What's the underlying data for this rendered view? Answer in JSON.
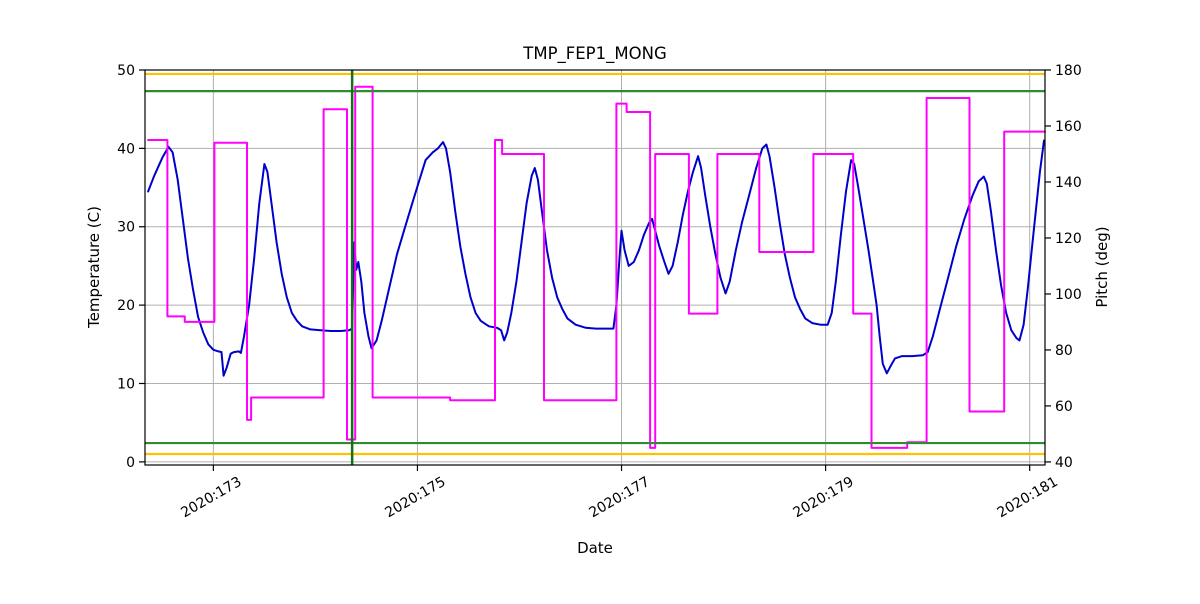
{
  "chart_data": {
    "type": "line",
    "title": "TMP_FEP1_MONG",
    "xlabel": "Date",
    "ylabel_left": "Temperature (C)",
    "ylabel_right": "Pitch (deg)",
    "grid": true,
    "grid_color": "#b0b0b0",
    "background": "#ffffff",
    "x_axis": {
      "min": 172.33,
      "max": 181.15,
      "ticks": [
        {
          "value": 173,
          "label": "2020:173"
        },
        {
          "value": 175,
          "label": "2020:175"
        },
        {
          "value": 177,
          "label": "2020:177"
        },
        {
          "value": 179,
          "label": "2020:179"
        },
        {
          "value": 181,
          "label": "2020:181"
        }
      ]
    },
    "left_axis": {
      "min": -0.4,
      "max": 50,
      "ticks": [
        0,
        10,
        20,
        30,
        40,
        50
      ],
      "color": "#000000"
    },
    "right_axis": {
      "min": 38.9,
      "max": 180,
      "ticks": [
        40,
        60,
        80,
        100,
        120,
        140,
        160,
        180
      ],
      "color": "#ff00ff"
    },
    "series": [
      {
        "name": "temperature",
        "axis": "left",
        "color": "#0000cd",
        "width": 2,
        "points": [
          [
            172.36,
            34.5
          ],
          [
            172.42,
            36.5
          ],
          [
            172.5,
            38.8
          ],
          [
            172.56,
            40.2
          ],
          [
            172.6,
            39.5
          ],
          [
            172.65,
            36
          ],
          [
            172.7,
            31
          ],
          [
            172.75,
            26
          ],
          [
            172.8,
            22
          ],
          [
            172.85,
            18.5
          ],
          [
            172.9,
            16.5
          ],
          [
            172.95,
            15
          ],
          [
            173.0,
            14.3
          ],
          [
            173.05,
            14.1
          ],
          [
            173.08,
            14
          ],
          [
            173.1,
            11
          ],
          [
            173.13,
            12
          ],
          [
            173.17,
            13.8
          ],
          [
            173.2,
            14
          ],
          [
            173.25,
            14.1
          ],
          [
            173.27,
            13.9
          ],
          [
            173.3,
            16
          ],
          [
            173.35,
            20
          ],
          [
            173.4,
            26
          ],
          [
            173.45,
            33
          ],
          [
            173.5,
            38
          ],
          [
            173.53,
            37
          ],
          [
            173.57,
            33
          ],
          [
            173.62,
            28
          ],
          [
            173.67,
            24
          ],
          [
            173.72,
            21
          ],
          [
            173.77,
            19
          ],
          [
            173.82,
            18
          ],
          [
            173.87,
            17.3
          ],
          [
            173.95,
            16.9
          ],
          [
            174.05,
            16.8
          ],
          [
            174.15,
            16.7
          ],
          [
            174.25,
            16.7
          ],
          [
            174.33,
            16.8
          ],
          [
            174.36,
            17
          ],
          [
            174.38,
            28
          ],
          [
            174.4,
            24.5
          ],
          [
            174.42,
            25.5
          ],
          [
            174.45,
            23
          ],
          [
            174.48,
            19
          ],
          [
            174.52,
            16
          ],
          [
            174.55,
            14.5
          ],
          [
            174.6,
            15.5
          ],
          [
            174.65,
            18
          ],
          [
            174.72,
            22
          ],
          [
            174.8,
            26.5
          ],
          [
            174.88,
            30
          ],
          [
            174.95,
            33
          ],
          [
            175.02,
            36
          ],
          [
            175.08,
            38.5
          ],
          [
            175.15,
            39.5
          ],
          [
            175.2,
            40
          ],
          [
            175.25,
            40.8
          ],
          [
            175.28,
            40
          ],
          [
            175.32,
            37
          ],
          [
            175.37,
            32
          ],
          [
            175.42,
            27.5
          ],
          [
            175.47,
            24
          ],
          [
            175.52,
            21
          ],
          [
            175.57,
            19
          ],
          [
            175.62,
            18
          ],
          [
            175.7,
            17.3
          ],
          [
            175.78,
            17.1
          ],
          [
            175.82,
            16.8
          ],
          [
            175.85,
            15.5
          ],
          [
            175.88,
            16.5
          ],
          [
            175.92,
            19
          ],
          [
            175.97,
            23
          ],
          [
            176.02,
            28
          ],
          [
            176.07,
            33
          ],
          [
            176.12,
            36.5
          ],
          [
            176.15,
            37.5
          ],
          [
            176.18,
            36
          ],
          [
            176.22,
            32
          ],
          [
            176.27,
            27
          ],
          [
            176.32,
            23.5
          ],
          [
            176.37,
            21
          ],
          [
            176.42,
            19.5
          ],
          [
            176.47,
            18.3
          ],
          [
            176.55,
            17.5
          ],
          [
            176.65,
            17.1
          ],
          [
            176.75,
            17
          ],
          [
            176.85,
            17
          ],
          [
            176.92,
            17
          ],
          [
            176.95,
            20
          ],
          [
            176.98,
            26
          ],
          [
            177.0,
            29.5
          ],
          [
            177.03,
            27
          ],
          [
            177.07,
            25
          ],
          [
            177.12,
            25.5
          ],
          [
            177.17,
            27
          ],
          [
            177.22,
            29
          ],
          [
            177.27,
            30.5
          ],
          [
            177.3,
            31
          ],
          [
            177.33,
            29.5
          ],
          [
            177.37,
            27.5
          ],
          [
            177.42,
            25.5
          ],
          [
            177.46,
            24
          ],
          [
            177.5,
            25
          ],
          [
            177.55,
            28
          ],
          [
            177.6,
            31.5
          ],
          [
            177.65,
            34.5
          ],
          [
            177.7,
            37
          ],
          [
            177.75,
            39
          ],
          [
            177.78,
            37.5
          ],
          [
            177.82,
            34
          ],
          [
            177.87,
            30
          ],
          [
            177.92,
            26.5
          ],
          [
            177.97,
            23.5
          ],
          [
            178.02,
            21.5
          ],
          [
            178.06,
            23
          ],
          [
            178.12,
            27
          ],
          [
            178.18,
            30.5
          ],
          [
            178.25,
            34
          ],
          [
            178.32,
            37.5
          ],
          [
            178.38,
            40
          ],
          [
            178.42,
            40.5
          ],
          [
            178.45,
            39
          ],
          [
            178.5,
            35
          ],
          [
            178.55,
            30.5
          ],
          [
            178.6,
            26.5
          ],
          [
            178.65,
            23.5
          ],
          [
            178.7,
            21
          ],
          [
            178.75,
            19.5
          ],
          [
            178.8,
            18.3
          ],
          [
            178.87,
            17.7
          ],
          [
            178.95,
            17.5
          ],
          [
            179.02,
            17.5
          ],
          [
            179.06,
            19
          ],
          [
            179.1,
            23
          ],
          [
            179.15,
            29
          ],
          [
            179.2,
            34.5
          ],
          [
            179.25,
            38.5
          ],
          [
            179.28,
            38
          ],
          [
            179.32,
            35
          ],
          [
            179.37,
            31
          ],
          [
            179.42,
            27
          ],
          [
            179.46,
            23.5
          ],
          [
            179.5,
            20
          ],
          [
            179.53,
            16
          ],
          [
            179.56,
            12.5
          ],
          [
            179.6,
            11.3
          ],
          [
            179.64,
            12.3
          ],
          [
            179.68,
            13.2
          ],
          [
            179.75,
            13.5
          ],
          [
            179.85,
            13.5
          ],
          [
            179.95,
            13.6
          ],
          [
            180.0,
            14
          ],
          [
            180.05,
            16
          ],
          [
            180.12,
            19.5
          ],
          [
            180.2,
            23.5
          ],
          [
            180.28,
            27.5
          ],
          [
            180.36,
            31
          ],
          [
            180.44,
            34
          ],
          [
            180.5,
            35.8
          ],
          [
            180.55,
            36.4
          ],
          [
            180.58,
            35.5
          ],
          [
            180.62,
            32
          ],
          [
            180.67,
            27
          ],
          [
            180.72,
            22.5
          ],
          [
            180.77,
            19
          ],
          [
            180.82,
            16.8
          ],
          [
            180.87,
            15.8
          ],
          [
            180.9,
            15.5
          ],
          [
            180.94,
            17.5
          ],
          [
            180.98,
            22
          ],
          [
            181.02,
            27
          ],
          [
            181.06,
            32
          ],
          [
            181.1,
            37
          ],
          [
            181.14,
            41
          ]
        ]
      },
      {
        "name": "pitch",
        "axis": "right",
        "color": "#ff00ff",
        "width": 2,
        "points": [
          [
            172.36,
            155
          ],
          [
            172.55,
            155
          ],
          [
            172.55,
            92
          ],
          [
            172.72,
            92
          ],
          [
            172.72,
            90
          ],
          [
            173.01,
            90
          ],
          [
            173.01,
            154
          ],
          [
            173.33,
            154
          ],
          [
            173.33,
            55
          ],
          [
            173.37,
            55
          ],
          [
            173.37,
            63
          ],
          [
            174.08,
            63
          ],
          [
            174.08,
            166
          ],
          [
            174.31,
            166
          ],
          [
            174.31,
            48
          ],
          [
            174.39,
            48
          ],
          [
            174.39,
            174
          ],
          [
            174.56,
            174
          ],
          [
            174.56,
            63
          ],
          [
            175.32,
            63
          ],
          [
            175.32,
            62
          ],
          [
            175.76,
            62
          ],
          [
            175.76,
            155
          ],
          [
            175.83,
            155
          ],
          [
            175.83,
            150
          ],
          [
            176.24,
            150
          ],
          [
            176.24,
            62
          ],
          [
            176.95,
            62
          ],
          [
            176.95,
            168
          ],
          [
            177.05,
            168
          ],
          [
            177.05,
            165
          ],
          [
            177.28,
            165
          ],
          [
            177.28,
            45
          ],
          [
            177.33,
            45
          ],
          [
            177.33,
            150
          ],
          [
            177.66,
            150
          ],
          [
            177.66,
            93
          ],
          [
            177.94,
            93
          ],
          [
            177.94,
            150
          ],
          [
            178.35,
            150
          ],
          [
            178.35,
            115
          ],
          [
            178.88,
            115
          ],
          [
            178.88,
            150
          ],
          [
            179.27,
            150
          ],
          [
            179.27,
            93
          ],
          [
            179.45,
            93
          ],
          [
            179.45,
            45
          ],
          [
            179.8,
            45
          ],
          [
            179.8,
            47
          ],
          [
            179.99,
            47
          ],
          [
            179.99,
            170
          ],
          [
            180.41,
            170
          ],
          [
            180.41,
            58
          ],
          [
            180.75,
            58
          ],
          [
            180.75,
            158
          ],
          [
            181.15,
            158
          ]
        ]
      }
    ],
    "limit_lines": [
      {
        "name": "warning-high",
        "axis": "left",
        "value": 49.5,
        "color": "#ffc200",
        "width": 2.2
      },
      {
        "name": "caution-high",
        "axis": "left",
        "value": 47.3,
        "color": "#2e8b2e",
        "width": 2.2
      },
      {
        "name": "caution-low",
        "axis": "left",
        "value": 2.4,
        "color": "#2e8b2e",
        "width": 2.2
      },
      {
        "name": "warning-low",
        "axis": "left",
        "value": 1.0,
        "color": "#ffc200",
        "width": 2.2
      }
    ],
    "vlines": [
      {
        "name": "event-marker",
        "x": 174.36,
        "color": "#157015",
        "width": 2.5
      }
    ]
  }
}
